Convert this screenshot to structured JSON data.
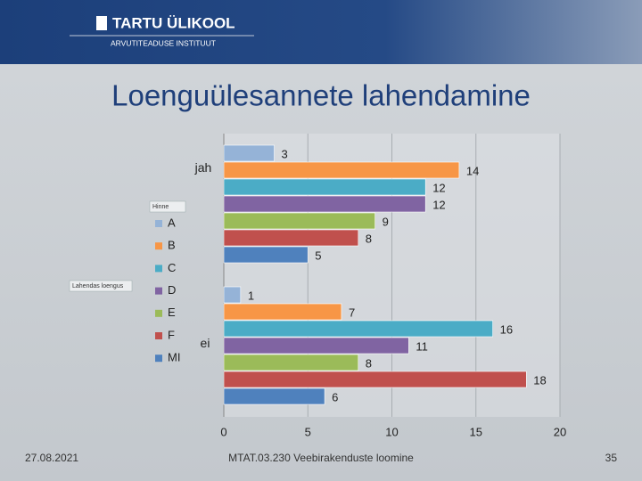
{
  "header": {
    "university": "TARTU ÜLIKOOL",
    "institute": "ARVUTITEADUSE INSTITUUT"
  },
  "title": "Loenguülesannete lahendamine",
  "footer": {
    "date": "27.08.2021",
    "course": "MTAT.03.230 Veebirakenduste loomine",
    "page": "35"
  },
  "chart_data": {
    "type": "bar",
    "orientation": "horizontal",
    "categories": [
      "jah",
      "ei"
    ],
    "legend_title": "Hinne",
    "field_button": "Lahendas loengus",
    "series": [
      {
        "name": "A",
        "color": "#95b3d7",
        "values": [
          3,
          1
        ]
      },
      {
        "name": "B",
        "color": "#f79646",
        "values": [
          14,
          7
        ]
      },
      {
        "name": "C",
        "color": "#4bacc6",
        "values": [
          12,
          16
        ]
      },
      {
        "name": "D",
        "color": "#8064a2",
        "values": [
          12,
          11
        ]
      },
      {
        "name": "E",
        "color": "#9bbb59",
        "values": [
          9,
          8
        ]
      },
      {
        "name": "F",
        "color": "#c0504d",
        "values": [
          8,
          18
        ]
      },
      {
        "name": "MI",
        "color": "#4f81bd",
        "values": [
          5,
          6
        ]
      }
    ],
    "xlim": [
      0,
      20
    ],
    "xticks": [
      0,
      5,
      10,
      15,
      20
    ],
    "grid": true
  }
}
